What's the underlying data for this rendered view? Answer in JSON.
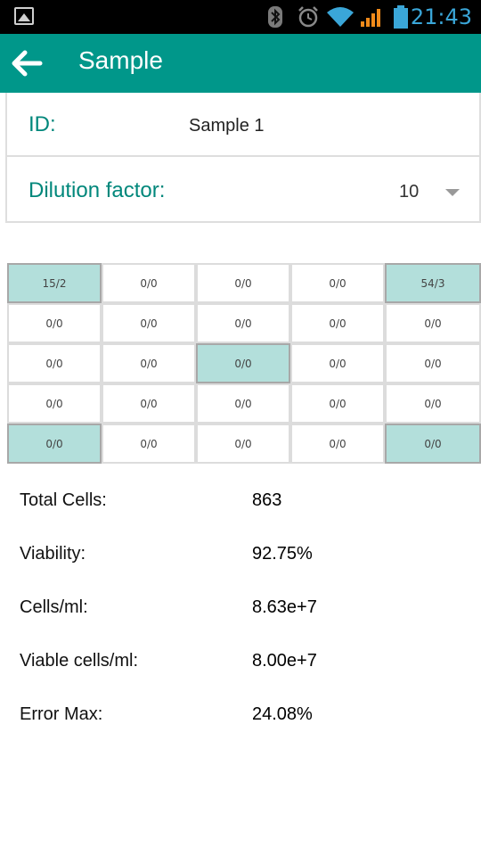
{
  "status_bar": {
    "time": "21:43",
    "icons": [
      "gallery-icon",
      "bluetooth-icon",
      "alarm-icon",
      "wifi-icon",
      "signal-icon",
      "battery-icon"
    ]
  },
  "app_bar": {
    "title": "Sample",
    "back_icon": "arrow-back-icon"
  },
  "form": {
    "id_label": "ID:",
    "id_value": "Sample 1",
    "dilution_label": "Dilution factor:",
    "dilution_value": "10"
  },
  "grid": {
    "rows": [
      [
        "15/2",
        "0/0",
        "0/0",
        "0/0",
        "54/3"
      ],
      [
        "0/0",
        "0/0",
        "0/0",
        "0/0",
        "0/0"
      ],
      [
        "0/0",
        "0/0",
        "0/0",
        "0/0",
        "0/0"
      ],
      [
        "0/0",
        "0/0",
        "0/0",
        "0/0",
        "0/0"
      ],
      [
        "0/0",
        "0/0",
        "0/0",
        "0/0",
        "0/0"
      ]
    ],
    "highlighted": [
      [
        0,
        0
      ],
      [
        0,
        4
      ],
      [
        2,
        2
      ],
      [
        4,
        0
      ],
      [
        4,
        4
      ]
    ]
  },
  "stats": [
    {
      "label": "Total Cells:",
      "value": "863"
    },
    {
      "label": "Viability:",
      "value": "92.75%"
    },
    {
      "label": "Cells/ml:",
      "value": "8.63e+7"
    },
    {
      "label": "Viable cells/ml:",
      "value": "8.00e+7"
    },
    {
      "label": "Error Max:",
      "value": "24.08%"
    }
  ],
  "colors": {
    "app_bar": "#00978a",
    "label_teal": "#00877b",
    "highlight_cell": "#b3dfdb",
    "clock": "#3aa6d8"
  }
}
